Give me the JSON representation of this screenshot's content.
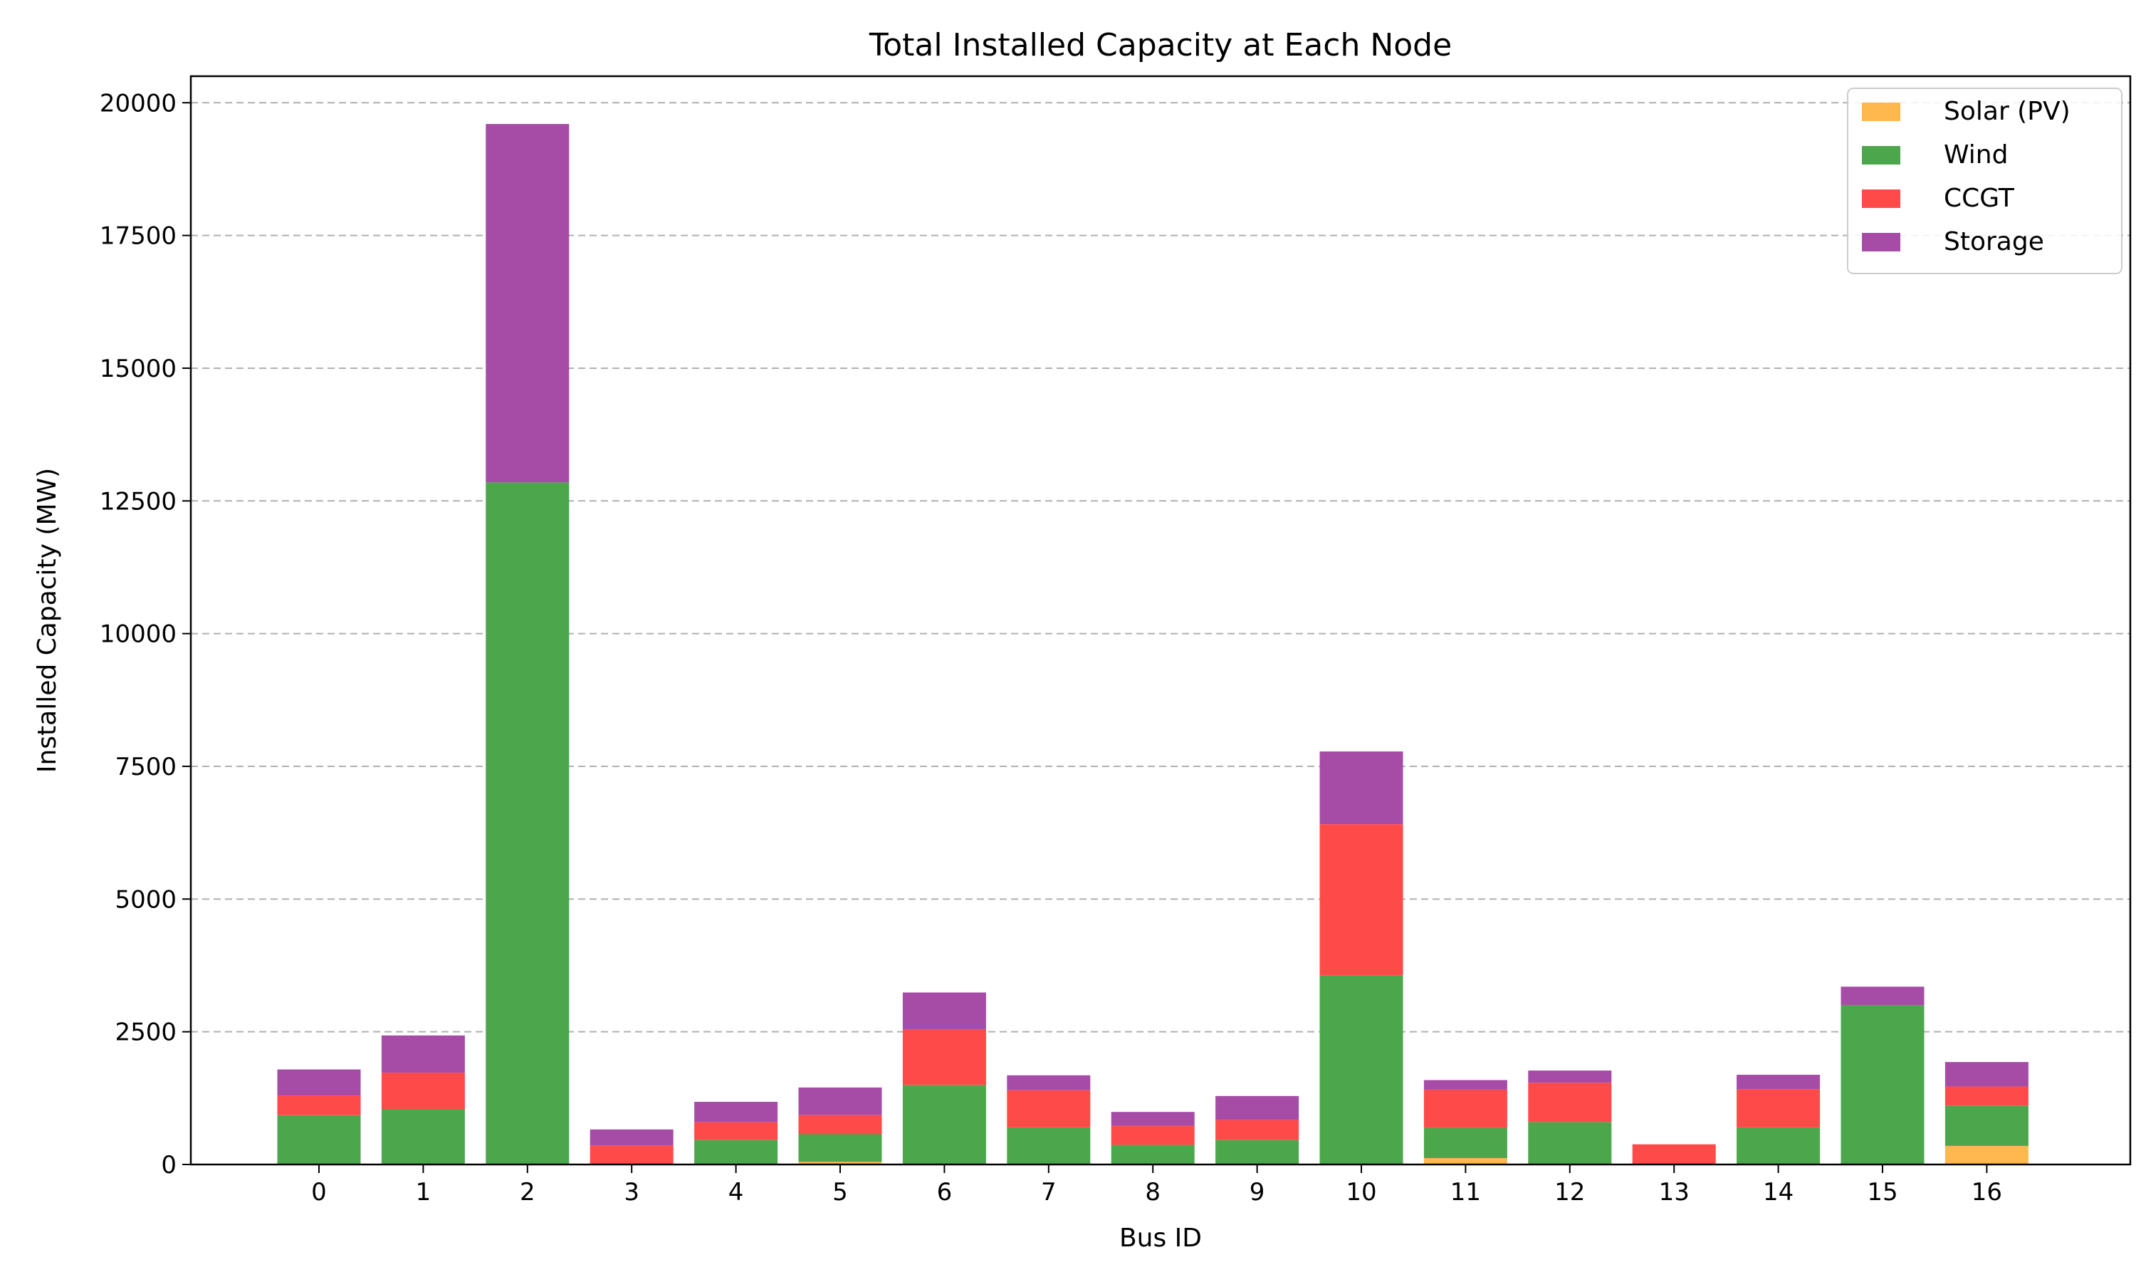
{
  "chart_data": {
    "type": "bar",
    "stacked": true,
    "title": "Total Installed Capacity at Each Node",
    "xlabel": "Bus ID",
    "ylabel": "Installed Capacity (MW)",
    "categories": [
      "0",
      "1",
      "2",
      "3",
      "4",
      "5",
      "6",
      "7",
      "8",
      "9",
      "10",
      "11",
      "12",
      "13",
      "14",
      "15",
      "16"
    ],
    "ylim": [
      0,
      20500
    ],
    "yticks": [
      0,
      2500,
      5000,
      7500,
      10000,
      12500,
      15000,
      17500,
      20000
    ],
    "grid": "y",
    "legend_position": "top-right",
    "series": [
      {
        "name": "Solar (PV)",
        "color": "#ffb84d",
        "values": [
          0,
          0,
          0,
          0,
          0,
          50,
          0,
          0,
          0,
          0,
          0,
          120,
          0,
          0,
          0,
          0,
          350
        ]
      },
      {
        "name": "Wind",
        "color": "#4ca64c",
        "values": [
          930,
          1040,
          12850,
          0,
          460,
          520,
          1500,
          700,
          370,
          460,
          3560,
          570,
          800,
          0,
          700,
          3000,
          760
        ]
      },
      {
        "name": "CCGT",
        "color": "#ff4a4a",
        "values": [
          370,
          690,
          0,
          360,
          340,
          360,
          1050,
          700,
          360,
          380,
          2850,
          720,
          740,
          380,
          720,
          0,
          360
        ]
      },
      {
        "name": "Storage",
        "color": "#a64ca6",
        "values": [
          490,
          700,
          6750,
          300,
          380,
          520,
          690,
          280,
          260,
          450,
          1370,
          180,
          230,
          0,
          270,
          350,
          460
        ]
      }
    ]
  }
}
